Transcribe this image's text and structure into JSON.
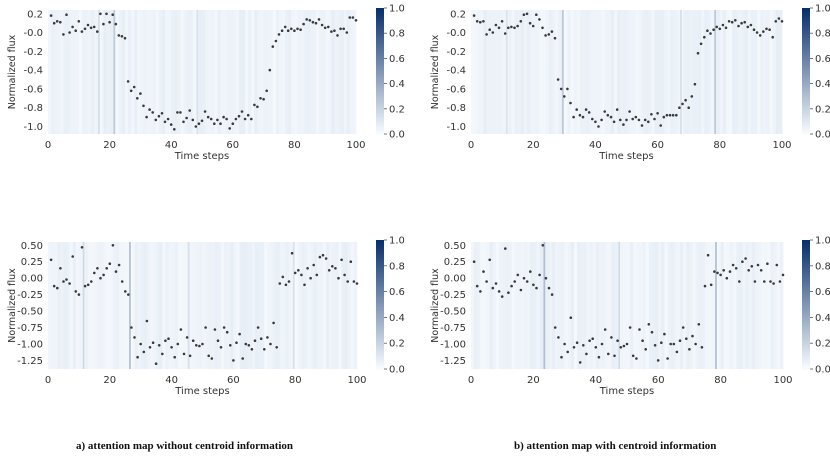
{
  "captions": {
    "a": "a) attention map without centroid information",
    "b": "b) attention map with centroid information"
  },
  "colormap": {
    "low": "#f7fbff",
    "high": "#08306b"
  },
  "chart_data": [
    {
      "type": "scatter",
      "panel": "top-left",
      "xlabel": "Time steps",
      "ylabel": "Normalized flux",
      "xlim": [
        0,
        100
      ],
      "ylim": [
        -1.08,
        0.24
      ],
      "xticks": [
        0,
        20,
        40,
        60,
        80,
        100
      ],
      "yticks": [
        0.2,
        -0.0,
        -0.2,
        -0.4,
        -0.6,
        -0.8,
        -1.0
      ],
      "ytick_labels": [
        "0.2",
        "-0.0",
        "-0.2",
        "-0.4",
        "-0.6",
        "-0.8",
        "-1.0"
      ],
      "colorbar": {
        "range": [
          0.0,
          1.0
        ],
        "ticks": [
          0.0,
          0.2,
          0.4,
          0.6,
          0.8,
          1.0
        ]
      },
      "attention_highlights": [
        {
          "x": 16,
          "v": 0.14
        },
        {
          "x": 21,
          "v": 0.24
        },
        {
          "x": 48,
          "v": 0.14
        }
      ],
      "x": [
        1,
        2,
        3,
        4,
        5,
        6,
        7,
        8,
        9,
        10,
        11,
        12,
        13,
        14,
        15,
        16,
        17,
        18,
        19,
        20,
        21,
        22,
        23,
        24,
        25,
        26,
        27,
        28,
        29,
        30,
        31,
        32,
        33,
        34,
        35,
        36,
        37,
        38,
        39,
        40,
        41,
        42,
        43,
        44,
        45,
        46,
        47,
        48,
        49,
        50,
        51,
        52,
        53,
        54,
        55,
        56,
        57,
        58,
        59,
        60,
        61,
        62,
        63,
        64,
        65,
        66,
        67,
        68,
        69,
        70,
        71,
        72,
        73,
        74,
        75,
        76,
        77,
        78,
        79,
        80,
        81,
        82,
        83,
        84,
        85,
        86,
        87,
        88,
        89,
        90,
        91,
        92,
        93,
        94,
        95,
        96,
        97,
        98,
        99,
        100
      ],
      "y": [
        0.18,
        0.1,
        0.12,
        0.11,
        -0.02,
        0.19,
        0.0,
        0.06,
        0.02,
        0.12,
        0.01,
        0.04,
        0.08,
        0.05,
        0.06,
        0.01,
        0.2,
        0.09,
        0.2,
        0.11,
        0.19,
        0.09,
        -0.03,
        -0.04,
        -0.06,
        -0.52,
        -0.62,
        -0.58,
        -0.7,
        -0.65,
        -0.78,
        -0.9,
        -0.82,
        -0.85,
        -0.93,
        -0.89,
        -0.86,
        -0.95,
        -0.92,
        -0.98,
        -1.03,
        -0.85,
        -0.85,
        -0.95,
        -0.91,
        -0.83,
        -0.93,
        -1.0,
        -0.97,
        -0.94,
        -0.84,
        -0.9,
        -0.92,
        -0.97,
        -0.93,
        -0.97,
        -0.9,
        -0.92,
        -1.02,
        -0.97,
        -0.92,
        -0.89,
        -0.84,
        -0.92,
        -0.88,
        -0.92,
        -0.77,
        -0.79,
        -0.7,
        -0.71,
        -0.62,
        -0.4,
        -0.15,
        -0.09,
        -0.02,
        0.02,
        0.06,
        0.02,
        0.04,
        0.02,
        0.04,
        0.03,
        0.09,
        0.14,
        0.13,
        0.11,
        0.1,
        0.14,
        0.08,
        0.05,
        0.06,
        0.01,
        0.02,
        -0.03,
        0.04,
        0.04,
        0.0,
        0.16,
        0.16,
        0.13
      ]
    },
    {
      "type": "scatter",
      "panel": "top-right",
      "xlabel": "Time steps",
      "ylabel": "Normalized flux",
      "xlim": [
        0,
        100
      ],
      "ylim": [
        -1.08,
        0.24
      ],
      "xticks": [
        0,
        20,
        40,
        60,
        80,
        100
      ],
      "yticks": [
        0.2,
        -0.0,
        -0.2,
        -0.4,
        -0.6,
        -0.8,
        -1.0
      ],
      "ytick_labels": [
        "0.2",
        "-0.0",
        "-0.2",
        "-0.4",
        "-0.6",
        "-0.8",
        "-1.0"
      ],
      "colorbar": {
        "range": [
          0.0,
          1.0
        ],
        "ticks": [
          0.0,
          0.2,
          0.4,
          0.6,
          0.8,
          1.0
        ]
      },
      "attention_highlights": [
        {
          "x": 11,
          "v": 0.12
        },
        {
          "x": 29,
          "v": 0.24
        },
        {
          "x": 67,
          "v": 0.13
        },
        {
          "x": 78,
          "v": 0.24
        }
      ],
      "x": [
        1,
        2,
        3,
        4,
        5,
        6,
        7,
        8,
        9,
        10,
        11,
        12,
        13,
        14,
        15,
        16,
        17,
        18,
        19,
        20,
        21,
        22,
        23,
        24,
        25,
        26,
        27,
        28,
        29,
        30,
        31,
        32,
        33,
        34,
        35,
        36,
        37,
        38,
        39,
        40,
        41,
        42,
        43,
        44,
        45,
        46,
        47,
        48,
        49,
        50,
        51,
        52,
        53,
        54,
        55,
        56,
        57,
        58,
        59,
        60,
        61,
        62,
        63,
        64,
        65,
        66,
        67,
        68,
        69,
        70,
        71,
        72,
        73,
        74,
        75,
        76,
        77,
        78,
        79,
        80,
        81,
        82,
        83,
        84,
        85,
        86,
        87,
        88,
        89,
        90,
        91,
        92,
        93,
        94,
        95,
        96,
        97,
        98,
        99,
        100
      ],
      "y": [
        0.18,
        0.12,
        0.11,
        0.12,
        -0.02,
        0.03,
        0.0,
        0.08,
        0.05,
        0.12,
        -0.01,
        0.05,
        0.06,
        0.05,
        0.07,
        0.12,
        0.19,
        0.2,
        0.1,
        0.07,
        0.19,
        0.14,
        0.05,
        -0.03,
        -0.02,
        0.01,
        -0.06,
        -0.5,
        -0.6,
        -0.68,
        -0.6,
        -0.75,
        -0.9,
        -0.82,
        -0.88,
        -0.9,
        -0.82,
        -0.85,
        -0.92,
        -0.95,
        -1.0,
        -0.93,
        -0.84,
        -0.88,
        -0.9,
        -0.95,
        -0.82,
        -0.93,
        -0.98,
        -0.93,
        -0.84,
        -0.92,
        -0.9,
        -0.93,
        -0.99,
        -0.93,
        -0.95,
        -0.87,
        -0.92,
        -0.86,
        -0.99,
        -0.9,
        -0.88,
        -0.88,
        -0.88,
        -0.88,
        -0.8,
        -0.76,
        -0.72,
        -0.8,
        -0.68,
        -0.55,
        -0.22,
        -0.12,
        -0.05,
        0.02,
        -0.01,
        0.03,
        0.06,
        0.04,
        0.08,
        0.05,
        0.12,
        0.11,
        0.13,
        0.07,
        0.1,
        0.11,
        0.06,
        0.08,
        0.03,
        0.0,
        -0.03,
        0.01,
        0.04,
        0.03,
        -0.05,
        0.12,
        0.15,
        0.12
      ]
    },
    {
      "type": "scatter",
      "panel": "bottom-left",
      "xlabel": "Time steps",
      "ylabel": "Normalized flux",
      "xlim": [
        0,
        100
      ],
      "ylim": [
        -1.38,
        0.55
      ],
      "xticks": [
        0,
        20,
        40,
        60,
        80,
        100
      ],
      "yticks": [
        0.5,
        0.25,
        0.0,
        -0.25,
        -0.5,
        -0.75,
        -1.0,
        -1.25
      ],
      "ytick_labels": [
        "0.50",
        "0.25",
        "0.00",
        "-0.25",
        "-0.50",
        "-0.75",
        "-1.00",
        "-1.25"
      ],
      "colorbar": {
        "range": [
          0.0,
          1.0
        ],
        "ticks": [
          0.0,
          0.2,
          0.4,
          0.6,
          0.8,
          1.0
        ]
      },
      "attention_highlights": [
        {
          "x": 11,
          "v": 0.16
        },
        {
          "x": 26,
          "v": 0.26
        },
        {
          "x": 45,
          "v": 0.14
        },
        {
          "x": 79,
          "v": 0.13
        }
      ],
      "x": [
        1,
        2,
        3,
        4,
        5,
        6,
        7,
        8,
        9,
        10,
        11,
        12,
        13,
        14,
        15,
        16,
        17,
        18,
        19,
        20,
        21,
        22,
        23,
        24,
        25,
        26,
        27,
        28,
        29,
        30,
        31,
        32,
        33,
        34,
        35,
        36,
        37,
        38,
        39,
        40,
        41,
        42,
        43,
        44,
        45,
        46,
        47,
        48,
        49,
        50,
        51,
        52,
        53,
        54,
        55,
        56,
        57,
        58,
        59,
        60,
        61,
        62,
        63,
        64,
        65,
        66,
        67,
        68,
        69,
        70,
        71,
        72,
        73,
        74,
        75,
        76,
        77,
        78,
        79,
        80,
        81,
        82,
        83,
        84,
        85,
        86,
        87,
        88,
        89,
        90,
        91,
        92,
        93,
        94,
        95,
        96,
        97,
        98,
        99,
        100
      ],
      "y": [
        0.28,
        -0.12,
        -0.15,
        0.15,
        -0.05,
        -0.02,
        -0.08,
        0.33,
        -0.2,
        -0.25,
        0.47,
        -0.12,
        -0.1,
        -0.05,
        0.08,
        0.15,
        0.0,
        0.05,
        0.15,
        0.22,
        0.5,
        0.1,
        0.2,
        -0.05,
        -0.2,
        -0.25,
        -0.75,
        -0.9,
        -1.2,
        -1.0,
        -1.12,
        -0.65,
        -1.05,
        -0.98,
        -1.3,
        -1.02,
        -1.15,
        -0.95,
        -0.92,
        -1.05,
        -1.2,
        -1.0,
        -0.78,
        -1.15,
        -0.9,
        -1.18,
        -0.95,
        -1.02,
        -1.03,
        -1.0,
        -0.75,
        -1.18,
        -1.22,
        -0.78,
        -0.95,
        -1.05,
        -0.75,
        -0.82,
        -1.02,
        -1.25,
        -0.98,
        -0.85,
        -1.22,
        -1.0,
        -1.02,
        -1.08,
        -0.95,
        -0.75,
        -0.92,
        -1.08,
        -0.9,
        -1.0,
        -0.68,
        -1.05,
        -0.08,
        0.02,
        -0.1,
        -0.05,
        0.38,
        0.08,
        0.12,
        0.05,
        -0.1,
        0.15,
        0.0,
        0.2,
        0.05,
        0.32,
        0.35,
        0.3,
        0.12,
        0.18,
        0.15,
        0.0,
        0.28,
        0.05,
        -0.05,
        0.25,
        -0.05,
        -0.08
      ]
    },
    {
      "type": "scatter",
      "panel": "bottom-right",
      "xlabel": "Time steps",
      "ylabel": "Normalized flux",
      "xlim": [
        0,
        100
      ],
      "ylim": [
        -1.38,
        0.55
      ],
      "xticks": [
        0,
        20,
        40,
        60,
        80,
        100
      ],
      "yticks": [
        0.5,
        0.25,
        0.0,
        -0.25,
        -0.5,
        -0.75,
        -1.0,
        -1.25
      ],
      "ytick_labels": [
        "0.50",
        "0.25",
        "0.00",
        "-0.25",
        "-0.50",
        "-0.75",
        "-1.00",
        "-1.25"
      ],
      "colorbar": {
        "range": [
          0.0,
          1.0
        ],
        "ticks": [
          0.0,
          0.2,
          0.4,
          0.6,
          0.8,
          1.0
        ]
      },
      "attention_highlights": [
        {
          "x": 23,
          "v": 0.3
        },
        {
          "x": 47,
          "v": 0.16
        },
        {
          "x": 78,
          "v": 0.26
        }
      ],
      "x": [
        1,
        2,
        3,
        4,
        5,
        6,
        7,
        8,
        9,
        10,
        11,
        12,
        13,
        14,
        15,
        16,
        17,
        18,
        19,
        20,
        21,
        22,
        23,
        24,
        25,
        26,
        27,
        28,
        29,
        30,
        31,
        32,
        33,
        34,
        35,
        36,
        37,
        38,
        39,
        40,
        41,
        42,
        43,
        44,
        45,
        46,
        47,
        48,
        49,
        50,
        51,
        52,
        53,
        54,
        55,
        56,
        57,
        58,
        59,
        60,
        61,
        62,
        63,
        64,
        65,
        66,
        67,
        68,
        69,
        70,
        71,
        72,
        73,
        74,
        75,
        76,
        77,
        78,
        79,
        80,
        81,
        82,
        83,
        84,
        85,
        86,
        87,
        88,
        89,
        90,
        91,
        92,
        93,
        94,
        95,
        96,
        97,
        98,
        99,
        100
      ],
      "y": [
        0.25,
        -0.12,
        -0.2,
        0.1,
        -0.05,
        0.28,
        -0.15,
        -0.08,
        -0.2,
        -0.28,
        0.45,
        -0.22,
        -0.12,
        -0.05,
        0.05,
        -0.18,
        0.0,
        -0.05,
        0.1,
        -0.1,
        -0.15,
        0.05,
        0.5,
        0.0,
        -0.15,
        -0.25,
        -0.75,
        -0.9,
        -1.2,
        -1.0,
        -1.12,
        -0.6,
        -1.05,
        -0.98,
        -1.28,
        -1.02,
        -1.15,
        -0.95,
        -0.92,
        -1.05,
        -1.2,
        -1.0,
        -0.78,
        -1.15,
        -0.9,
        -1.18,
        -0.95,
        -1.05,
        -1.03,
        -1.0,
        -0.75,
        -1.18,
        -1.22,
        -0.78,
        -0.95,
        -1.08,
        -0.7,
        -0.82,
        -1.02,
        -1.25,
        -0.98,
        -0.85,
        -1.22,
        -1.0,
        -1.0,
        -1.12,
        -0.95,
        -0.75,
        -0.92,
        -1.08,
        -0.88,
        -1.0,
        -0.7,
        -1.05,
        -0.12,
        0.35,
        -0.1,
        0.1,
        0.08,
        0.05,
        0.12,
        0.0,
        0.1,
        0.2,
        0.15,
        -0.05,
        0.25,
        0.3,
        0.12,
        0.18,
        -0.05,
        0.2,
        0.12,
        -0.05,
        0.22,
        -0.05,
        -0.08,
        0.2,
        -0.05,
        0.05
      ]
    }
  ]
}
